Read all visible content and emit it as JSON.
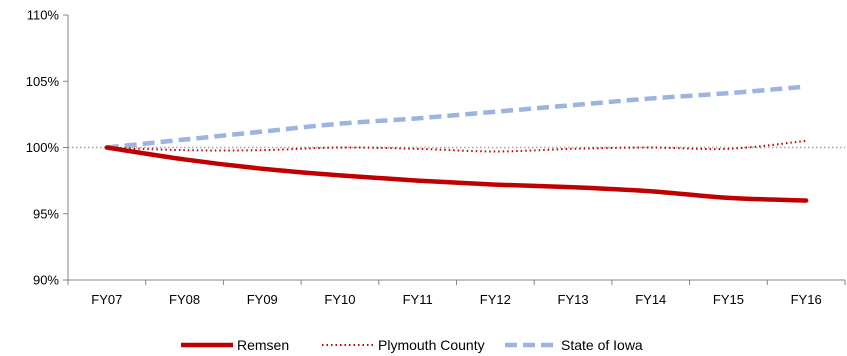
{
  "chart_data": {
    "type": "line",
    "title": "",
    "xlabel": "",
    "ylabel": "",
    "categories": [
      "FY07",
      "FY08",
      "FY09",
      "FY10",
      "FY11",
      "FY12",
      "FY13",
      "FY14",
      "FY15",
      "FY16"
    ],
    "ylim": [
      90,
      110
    ],
    "yticks": [
      90,
      95,
      100,
      105,
      110
    ],
    "ytick_labels": [
      "90%",
      "95%",
      "100%",
      "105%",
      "110%"
    ],
    "reference_line": 100,
    "grid": false,
    "legend_position": "bottom",
    "series": [
      {
        "name": "Remsen",
        "style": "solid",
        "color": "#C00000",
        "values": [
          100.0,
          99.1,
          98.4,
          97.9,
          97.5,
          97.2,
          97.0,
          96.7,
          96.2,
          96.0
        ]
      },
      {
        "name": "Plymouth County",
        "style": "dotted",
        "color": "#C00000",
        "values": [
          100.0,
          99.8,
          99.8,
          100.0,
          99.9,
          99.7,
          99.9,
          100.0,
          99.9,
          100.5
        ]
      },
      {
        "name": "State of Iowa",
        "style": "dashed",
        "color": "#9DB3E0",
        "values": [
          100.0,
          100.6,
          101.2,
          101.8,
          102.2,
          102.7,
          103.2,
          103.7,
          104.1,
          104.6
        ]
      }
    ]
  }
}
